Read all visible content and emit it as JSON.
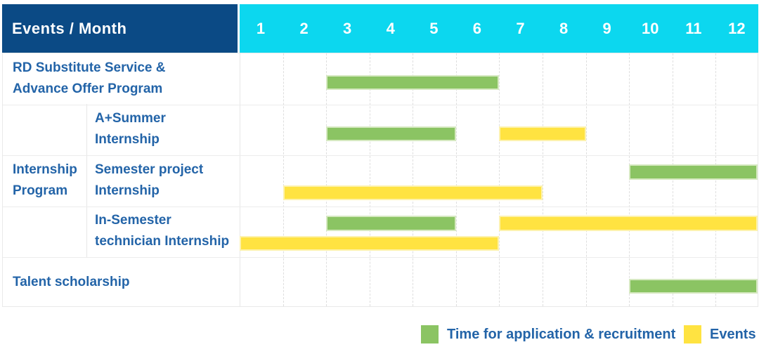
{
  "header": {
    "corner_label": "Events / Month"
  },
  "colors": {
    "navy_header": "#0b4a85",
    "cyan_header": "#0cd7ef",
    "label_blue": "#2364a8",
    "green": "#8bc463",
    "yellow": "#ffe341",
    "grid_line": "#e9e9e9",
    "header_text": "#ffffff"
  },
  "chart_data": {
    "type": "bar",
    "subtype": "gantt-schedule-table",
    "title": "Events / Month",
    "x_axis": {
      "unit": "month",
      "range": [
        1,
        12
      ],
      "ticks": [
        "1",
        "2",
        "3",
        "4",
        "5",
        "6",
        "7",
        "8",
        "9",
        "10",
        "11",
        "12"
      ]
    },
    "grid": true,
    "legend_position": "bottom-right",
    "group_label": "Internship Program",
    "group_label_lines": [
      "Internship",
      "Program"
    ],
    "rows": [
      {
        "label": "RD Substitute Service & Advance Offer Program",
        "label_lines": [
          "RD Substitute Service &",
          "Advance Offer Program"
        ],
        "group": null,
        "bars": [
          {
            "series": "Time for application & recruitment",
            "start_month": 3,
            "end_month": 6,
            "lane": "single"
          }
        ]
      },
      {
        "label": "A+Summer Internship",
        "label_lines": [
          "A+Summer",
          "Internship"
        ],
        "group": "Internship Program",
        "bars": [
          {
            "series": "Time for application & recruitment",
            "start_month": 3,
            "end_month": 5,
            "lane": "single"
          },
          {
            "series": "Events",
            "start_month": 7,
            "end_month": 8,
            "lane": "single"
          }
        ]
      },
      {
        "label": "Semester project Internship",
        "label_lines": [
          "Semester project",
          "Internship"
        ],
        "group": "Internship Program",
        "bars": [
          {
            "series": "Time for application & recruitment",
            "start_month": 10,
            "end_month": 12,
            "lane": "top"
          },
          {
            "series": "Events",
            "start_month": 2,
            "end_month": 7,
            "lane": "bottom"
          }
        ]
      },
      {
        "label": "In-Semester technician Internship",
        "label_lines": [
          "In-Semester",
          "technician Internship"
        ],
        "group": "Internship Program",
        "bars": [
          {
            "series": "Time for application & recruitment",
            "start_month": 3,
            "end_month": 5,
            "lane": "top"
          },
          {
            "series": "Events",
            "start_month": 7,
            "end_month": 12,
            "lane": "top"
          },
          {
            "series": "Events",
            "start_month": 1,
            "end_month": 6,
            "lane": "bottom"
          }
        ]
      },
      {
        "label": "Talent scholarship",
        "label_lines": [
          "Talent scholarship"
        ],
        "group": null,
        "bars": [
          {
            "series": "Time for application & recruitment",
            "start_month": 10,
            "end_month": 12,
            "lane": "single"
          }
        ]
      }
    ],
    "legend": [
      {
        "label": "Time for application & recruitment",
        "color": "#8bc463"
      },
      {
        "label": "Events",
        "color": "#ffe341"
      }
    ]
  }
}
